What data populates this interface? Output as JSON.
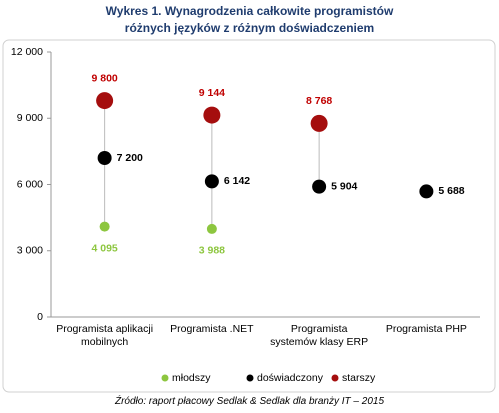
{
  "chart_data": {
    "type": "dot",
    "title": "Wykres 1. Wynagrodzenia całkowite programistów różnych języków z różnym doświadczeniem",
    "categories": [
      "Programista aplikacji mobilnych",
      "Programista .NET",
      "Programista systemów klasy ERP",
      "Programista PHP"
    ],
    "series": [
      {
        "name": "młodszy",
        "color": "#8dc63f",
        "values": [
          4095,
          3988,
          null,
          null
        ],
        "value_labels": [
          "4 095",
          "3 988",
          null,
          null
        ]
      },
      {
        "name": "doświadczony",
        "color": "#000000",
        "values": [
          7200,
          6142,
          5904,
          5688
        ],
        "value_labels": [
          "7 200",
          "6 142",
          "5 904",
          "5 688"
        ]
      },
      {
        "name": "starszy",
        "color": "#a50e0e",
        "values": [
          9800,
          9144,
          8768,
          null
        ],
        "value_labels": [
          "9 800",
          "9 144",
          "8 768",
          null
        ]
      }
    ],
    "ylim": [
      0,
      12000
    ],
    "yticks": [
      0,
      {
        "value": 3000,
        "label": "3 000"
      },
      {
        "value": 6000,
        "label": "6 000"
      },
      {
        "value": 9000,
        "label": "9 000"
      },
      {
        "value": 12000,
        "label": "12 000"
      }
    ],
    "legend": "bottom",
    "source": "Źródło: raport płacowy Sedlak & Sedlak dla branży IT – 2015"
  }
}
